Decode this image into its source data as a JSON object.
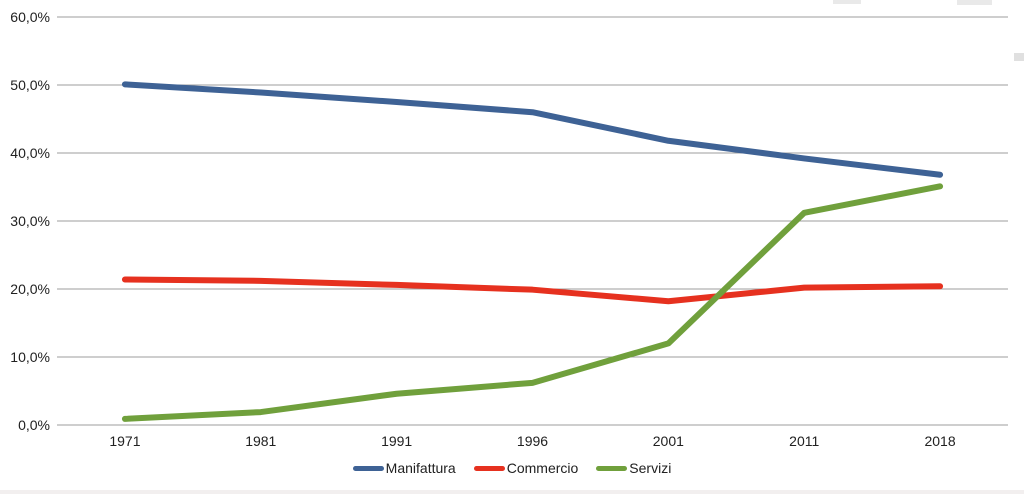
{
  "chart_data": {
    "type": "line",
    "categories": [
      "1971",
      "1981",
      "1991",
      "1996",
      "2001",
      "2011",
      "2018"
    ],
    "series": [
      {
        "name": "Manifattura",
        "color": "#3E6295",
        "values": [
          50.1,
          48.9,
          47.5,
          46.0,
          41.8,
          39.2,
          36.8
        ]
      },
      {
        "name": "Commercio",
        "color": "#E6311F",
        "values": [
          21.4,
          21.2,
          20.6,
          19.9,
          18.2,
          20.2,
          20.4
        ]
      },
      {
        "name": "Servizi",
        "color": "#70A03C",
        "values": [
          0.9,
          1.9,
          4.6,
          6.2,
          12.0,
          31.2,
          35.1
        ]
      }
    ],
    "title": "",
    "xlabel": "",
    "ylabel": "",
    "ylim": [
      0,
      60
    ],
    "ytick_step": 10,
    "ytick_labels": [
      "0,0%",
      "10,0%",
      "20,0%",
      "30,0%",
      "40,0%",
      "50,0%",
      "60,0%"
    ],
    "grid": true,
    "gridline_color": "#9d9d9d",
    "label_color": "#212121",
    "legend_position": "bottom",
    "line_width": 6
  }
}
